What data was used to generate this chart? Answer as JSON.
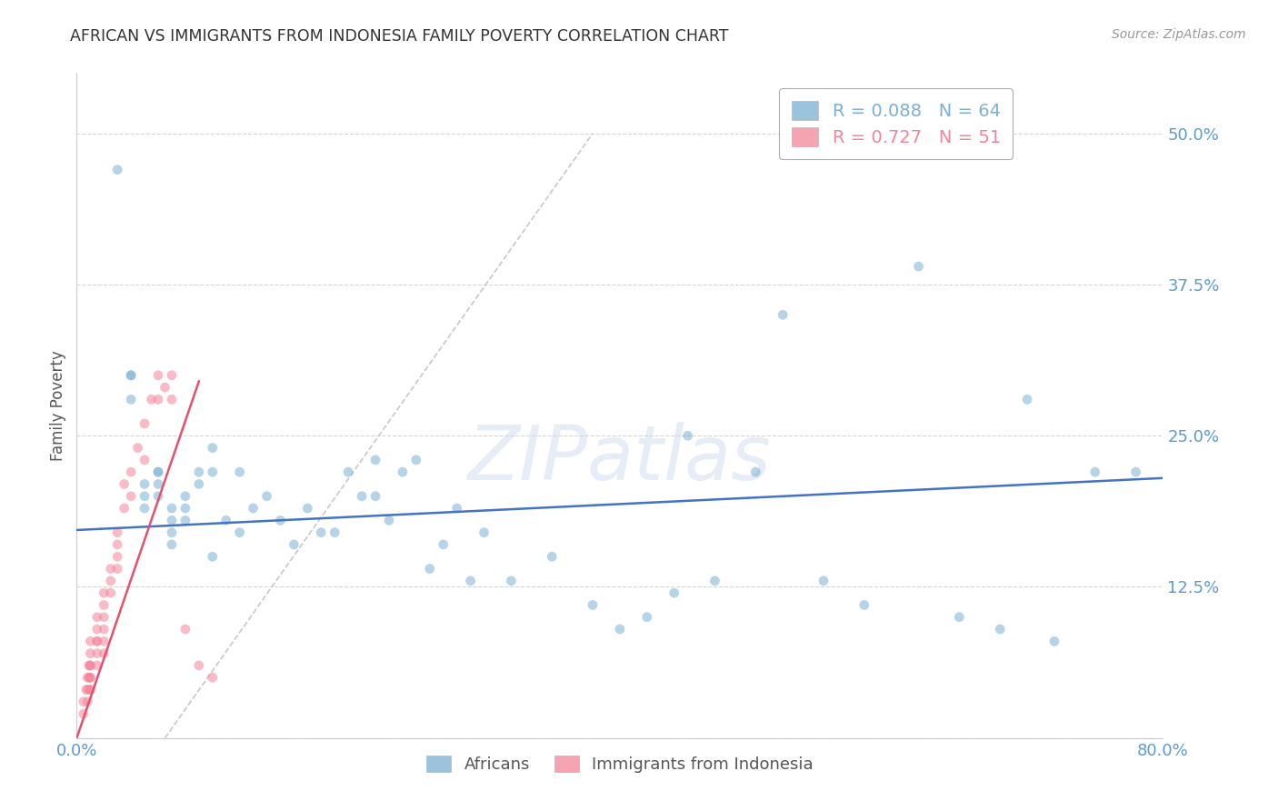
{
  "title": "AFRICAN VS IMMIGRANTS FROM INDONESIA FAMILY POVERTY CORRELATION CHART",
  "source": "Source: ZipAtlas.com",
  "ylabel": "Family Poverty",
  "watermark": "ZIPatlas",
  "yticks": [
    0.0,
    0.125,
    0.25,
    0.375,
    0.5
  ],
  "ytick_labels": [
    "",
    "12.5%",
    "25.0%",
    "37.5%",
    "50.0%"
  ],
  "xtick_positions": [
    0.0,
    0.8
  ],
  "xtick_labels": [
    "0.0%",
    "80.0%"
  ],
  "xlim": [
    0.0,
    0.8
  ],
  "ylim": [
    0.0,
    0.55
  ],
  "legend_r": [
    {
      "label": "R = 0.088   N = 64",
      "color": "#7BAFD4"
    },
    {
      "label": "R = 0.727   N = 51",
      "color": "#F48499"
    }
  ],
  "africans_x": [
    0.03,
    0.04,
    0.04,
    0.04,
    0.05,
    0.05,
    0.05,
    0.06,
    0.06,
    0.06,
    0.06,
    0.07,
    0.07,
    0.07,
    0.07,
    0.08,
    0.08,
    0.08,
    0.09,
    0.09,
    0.1,
    0.1,
    0.1,
    0.11,
    0.12,
    0.12,
    0.13,
    0.14,
    0.15,
    0.16,
    0.17,
    0.18,
    0.19,
    0.2,
    0.21,
    0.22,
    0.22,
    0.23,
    0.24,
    0.25,
    0.26,
    0.27,
    0.28,
    0.29,
    0.3,
    0.32,
    0.35,
    0.38,
    0.4,
    0.42,
    0.44,
    0.45,
    0.47,
    0.5,
    0.52,
    0.55,
    0.58,
    0.62,
    0.65,
    0.68,
    0.7,
    0.72,
    0.75,
    0.78
  ],
  "africans_y": [
    0.47,
    0.3,
    0.3,
    0.28,
    0.21,
    0.2,
    0.19,
    0.22,
    0.22,
    0.21,
    0.2,
    0.19,
    0.18,
    0.17,
    0.16,
    0.2,
    0.19,
    0.18,
    0.22,
    0.21,
    0.24,
    0.22,
    0.15,
    0.18,
    0.22,
    0.17,
    0.19,
    0.2,
    0.18,
    0.16,
    0.19,
    0.17,
    0.17,
    0.22,
    0.2,
    0.23,
    0.2,
    0.18,
    0.22,
    0.23,
    0.14,
    0.16,
    0.19,
    0.13,
    0.17,
    0.13,
    0.15,
    0.11,
    0.09,
    0.1,
    0.12,
    0.25,
    0.13,
    0.22,
    0.35,
    0.13,
    0.11,
    0.39,
    0.1,
    0.09,
    0.28,
    0.08,
    0.22,
    0.22
  ],
  "indonesia_x": [
    0.005,
    0.005,
    0.007,
    0.008,
    0.008,
    0.008,
    0.009,
    0.009,
    0.01,
    0.01,
    0.01,
    0.01,
    0.01,
    0.01,
    0.01,
    0.01,
    0.015,
    0.015,
    0.015,
    0.015,
    0.015,
    0.015,
    0.02,
    0.02,
    0.02,
    0.02,
    0.02,
    0.02,
    0.025,
    0.025,
    0.025,
    0.03,
    0.03,
    0.03,
    0.03,
    0.035,
    0.035,
    0.04,
    0.04,
    0.045,
    0.05,
    0.05,
    0.055,
    0.06,
    0.06,
    0.065,
    0.07,
    0.07,
    0.08,
    0.09,
    0.1
  ],
  "indonesia_y": [
    0.03,
    0.02,
    0.04,
    0.03,
    0.05,
    0.04,
    0.05,
    0.06,
    0.04,
    0.05,
    0.06,
    0.07,
    0.08,
    0.06,
    0.05,
    0.04,
    0.07,
    0.08,
    0.09,
    0.1,
    0.08,
    0.06,
    0.1,
    0.11,
    0.09,
    0.12,
    0.08,
    0.07,
    0.13,
    0.14,
    0.12,
    0.15,
    0.16,
    0.17,
    0.14,
    0.19,
    0.21,
    0.22,
    0.2,
    0.24,
    0.26,
    0.23,
    0.28,
    0.3,
    0.28,
    0.29,
    0.28,
    0.3,
    0.09,
    0.06,
    0.05
  ],
  "blue_line": [
    0.0,
    0.172,
    0.8,
    0.215
  ],
  "pink_line": [
    0.0,
    0.0,
    0.09,
    0.295
  ],
  "gray_dash_line": [
    0.065,
    0.0,
    0.38,
    0.5
  ],
  "dot_color_african": "#7BAFD4",
  "dot_color_indonesia": "#F48499",
  "dot_size": 60,
  "dot_alpha": 0.55,
  "bg_color": "#FFFFFF",
  "grid_color": "#CCCCCC",
  "title_color": "#333333",
  "tick_color": "#5B9BD5"
}
